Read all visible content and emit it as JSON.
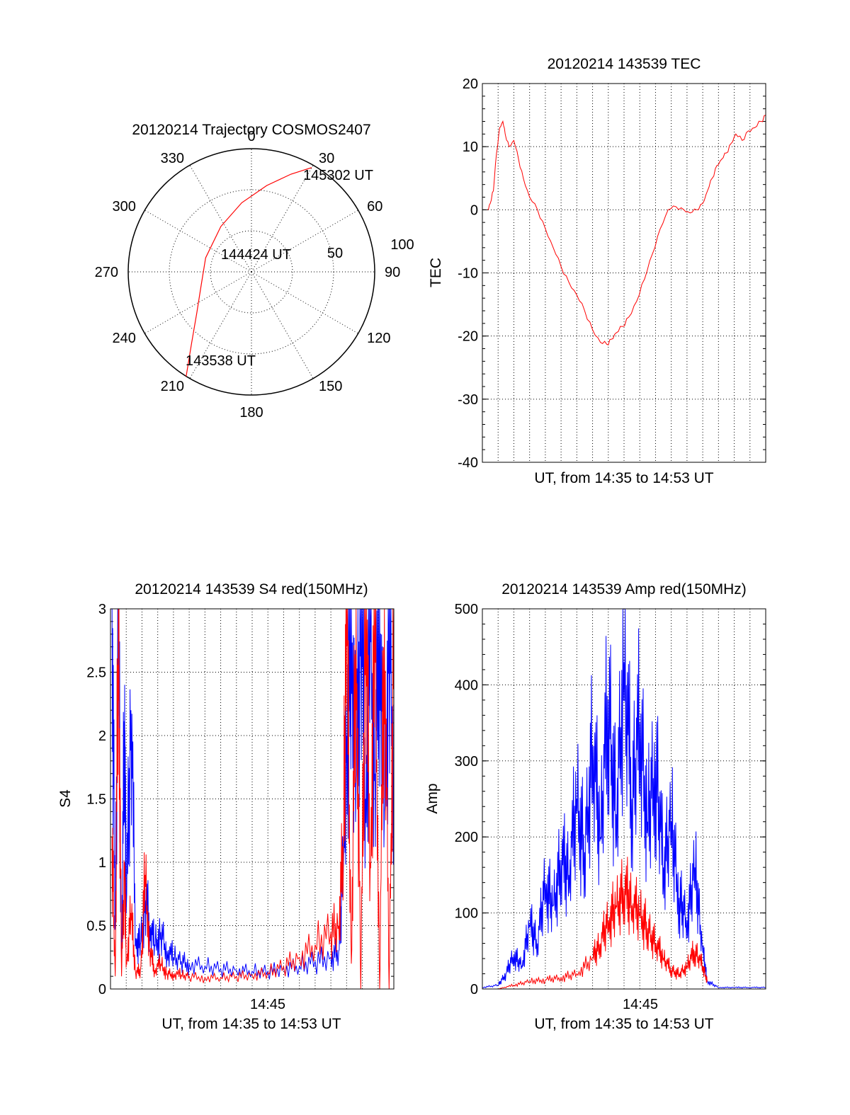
{
  "figure": {
    "panels": [
      "polar-trajectory",
      "tec",
      "s4",
      "amp"
    ]
  },
  "chart_data": [
    {
      "type": "scatter",
      "id": "polar",
      "title": "20120214 Trajectory COSMOS2407",
      "coordinate_system": "polar",
      "angle_labels": [
        "0",
        "30",
        "60",
        "90",
        "120",
        "150",
        "180",
        "210",
        "240",
        "270",
        "300",
        "330"
      ],
      "radius_labels": [
        "50",
        "100"
      ],
      "grid": true,
      "series": [
        {
          "color": "#ff0000",
          "points": [
            {
              "az": 212,
              "el": 0
            },
            {
              "az": 220,
              "el": 22
            },
            {
              "az": 233,
              "el": 40
            },
            {
              "az": 255,
              "el": 52
            },
            {
              "az": 287,
              "el": 55
            },
            {
              "az": 326,
              "el": 50
            },
            {
              "az": 352,
              "el": 39
            },
            {
              "az": 10,
              "el": 26
            },
            {
              "az": 22,
              "el": 13
            },
            {
              "az": 30,
              "el": 2
            }
          ]
        }
      ],
      "annotations": [
        {
          "text": "145302 UT",
          "near": "end"
        },
        {
          "text": "144424 UT",
          "near": "center"
        },
        {
          "text": "143538 UT",
          "near": "start"
        }
      ]
    },
    {
      "type": "line",
      "id": "tec",
      "title": "20120214 143539 TEC",
      "xlabel": "UT, from 14:35 to 14:53 UT",
      "ylabel": "TEC",
      "xlim": [
        0,
        18
      ],
      "ylim": [
        -40,
        20
      ],
      "yticks": [
        "20",
        "10",
        "0",
        "-10",
        "-20",
        "-30",
        "-40"
      ],
      "grid": true,
      "series": [
        {
          "color": "#ff0000",
          "x": [
            0.33,
            0.5,
            0.7,
            0.9,
            1.1,
            1.3,
            1.45,
            1.7,
            2.0,
            2.3,
            2.6,
            3.0,
            3.5,
            4.0,
            4.5,
            5.0,
            5.5,
            6.0,
            6.5,
            7.0,
            7.5,
            7.9,
            8.2,
            8.5,
            8.9,
            9.3,
            9.8,
            10.3,
            10.8,
            11.3,
            11.8,
            12.3,
            12.8,
            13.2,
            13.6,
            14.0,
            14.3,
            14.6,
            14.9,
            15.2,
            15.5,
            15.8,
            16.1,
            16.5,
            16.9,
            17.3,
            17.7,
            18.0
          ],
          "y": [
            0,
            1,
            3,
            9,
            13,
            14,
            12,
            10,
            11,
            8,
            5,
            2,
            0,
            -3,
            -6,
            -9,
            -11.5,
            -13.5,
            -16,
            -19,
            -21,
            -21.3,
            -20.5,
            -19.5,
            -18.5,
            -17,
            -14.5,
            -11,
            -7,
            -3,
            0,
            0.5,
            0,
            -0.5,
            0,
            1,
            3,
            5,
            7,
            8,
            9,
            10.5,
            12,
            11,
            12.5,
            13,
            14,
            15
          ]
        }
      ]
    },
    {
      "type": "line",
      "id": "s4",
      "title": "20120214 143539 S4 red(150MHz)",
      "xlabel": "UT, from 14:35 to 14:53 UT",
      "ylabel": "S4",
      "xlim": [
        0,
        18
      ],
      "ylim": [
        0,
        3
      ],
      "xticks": [
        "14:45"
      ],
      "yticks": [
        "3",
        "2.5",
        "2",
        "1.5",
        "1",
        "0.5",
        "0"
      ],
      "grid": true,
      "series": [
        {
          "color": "#0000ff",
          "x": [
            0.1,
            0.3,
            0.5,
            0.7,
            0.9,
            1.0,
            1.3,
            1.6,
            1.9,
            2.2,
            2.5,
            2.8,
            3.2,
            3.6,
            4.0,
            4.5,
            5,
            6,
            7,
            8,
            9,
            10,
            11,
            12,
            13,
            14,
            14.5,
            14.8,
            15.0,
            15.3,
            15.6,
            15.9,
            16.2,
            16.5,
            16.8,
            17.1,
            17.4,
            17.7,
            18.0
          ],
          "y": [
            3,
            0.5,
            3,
            0.2,
            2.4,
            0.6,
            2.2,
            0.4,
            0.35,
            0.7,
            0.5,
            0.35,
            0.45,
            0.3,
            0.25,
            0.22,
            0.2,
            0.18,
            0.16,
            0.15,
            0.14,
            0.14,
            0.16,
            0.18,
            0.22,
            0.25,
            0.3,
            1.0,
            2.0,
            3.0,
            1.6,
            3.0,
            1.5,
            3.0,
            1.7,
            3.0,
            1.4,
            3.0,
            1.7
          ]
        },
        {
          "color": "#ff0000",
          "x": [
            0.1,
            0.3,
            0.5,
            0.7,
            0.9,
            1.0,
            1.3,
            1.6,
            1.9,
            2.2,
            2.5,
            2.8,
            3.2,
            3.6,
            4.0,
            4.5,
            5,
            6,
            7,
            8,
            9,
            10,
            11,
            12,
            13,
            14,
            14.5,
            14.8,
            15.0,
            15.3,
            15.6,
            15.9,
            16.2,
            16.5,
            16.8,
            17.1,
            17.4,
            17.7,
            18.0
          ],
          "y": [
            1.2,
            0.1,
            3,
            0.1,
            1.0,
            0.2,
            0.6,
            0.12,
            0.15,
            0.9,
            0.3,
            0.15,
            0.2,
            0.12,
            0.12,
            0.11,
            0.1,
            0.09,
            0.09,
            0.1,
            0.11,
            0.13,
            0.18,
            0.25,
            0.35,
            0.45,
            0.5,
            1.2,
            3.0,
            0.2,
            3.0,
            0.0,
            3.0,
            1.0,
            3.0,
            0.0,
            3.0,
            0.0,
            3.0
          ]
        }
      ]
    },
    {
      "type": "line",
      "id": "amp",
      "title": "20120214 143539 Amp red(150MHz)",
      "xlabel": "UT, from 14:35 to 14:53 UT",
      "ylabel": "Amp",
      "xlim": [
        0,
        18
      ],
      "ylim": [
        0,
        500
      ],
      "xticks": [
        "14:45"
      ],
      "yticks": [
        "500",
        "400",
        "300",
        "200",
        "100",
        "0"
      ],
      "grid": true,
      "series": [
        {
          "color": "#0000ff",
          "x": [
            0,
            1,
            1.5,
            2,
            2.5,
            3,
            3.5,
            4,
            4.5,
            5,
            5.5,
            6,
            6.5,
            7,
            7.5,
            8,
            8.5,
            9,
            9.5,
            10,
            10.5,
            11,
            11.5,
            12,
            12.5,
            13,
            13.5,
            14,
            14.3,
            15,
            16,
            17,
            18
          ],
          "y": [
            2,
            5,
            20,
            45,
            30,
            85,
            60,
            140,
            110,
            170,
            150,
            250,
            180,
            320,
            200,
            380,
            230,
            430,
            250,
            350,
            220,
            300,
            160,
            220,
            120,
            90,
            160,
            50,
            10,
            2,
            2,
            2,
            2
          ]
        },
        {
          "color": "#ff0000",
          "x": [
            1,
            2,
            3,
            4,
            5,
            6,
            7,
            7.5,
            8,
            8.5,
            9,
            9.5,
            10,
            10.5,
            11,
            11.5,
            12,
            12.5,
            13,
            13.5,
            14,
            14.3
          ],
          "y": [
            0,
            5,
            10,
            12,
            15,
            20,
            40,
            60,
            90,
            110,
            130,
            110,
            100,
            80,
            60,
            40,
            25,
            20,
            30,
            50,
            30,
            10
          ]
        }
      ]
    }
  ]
}
